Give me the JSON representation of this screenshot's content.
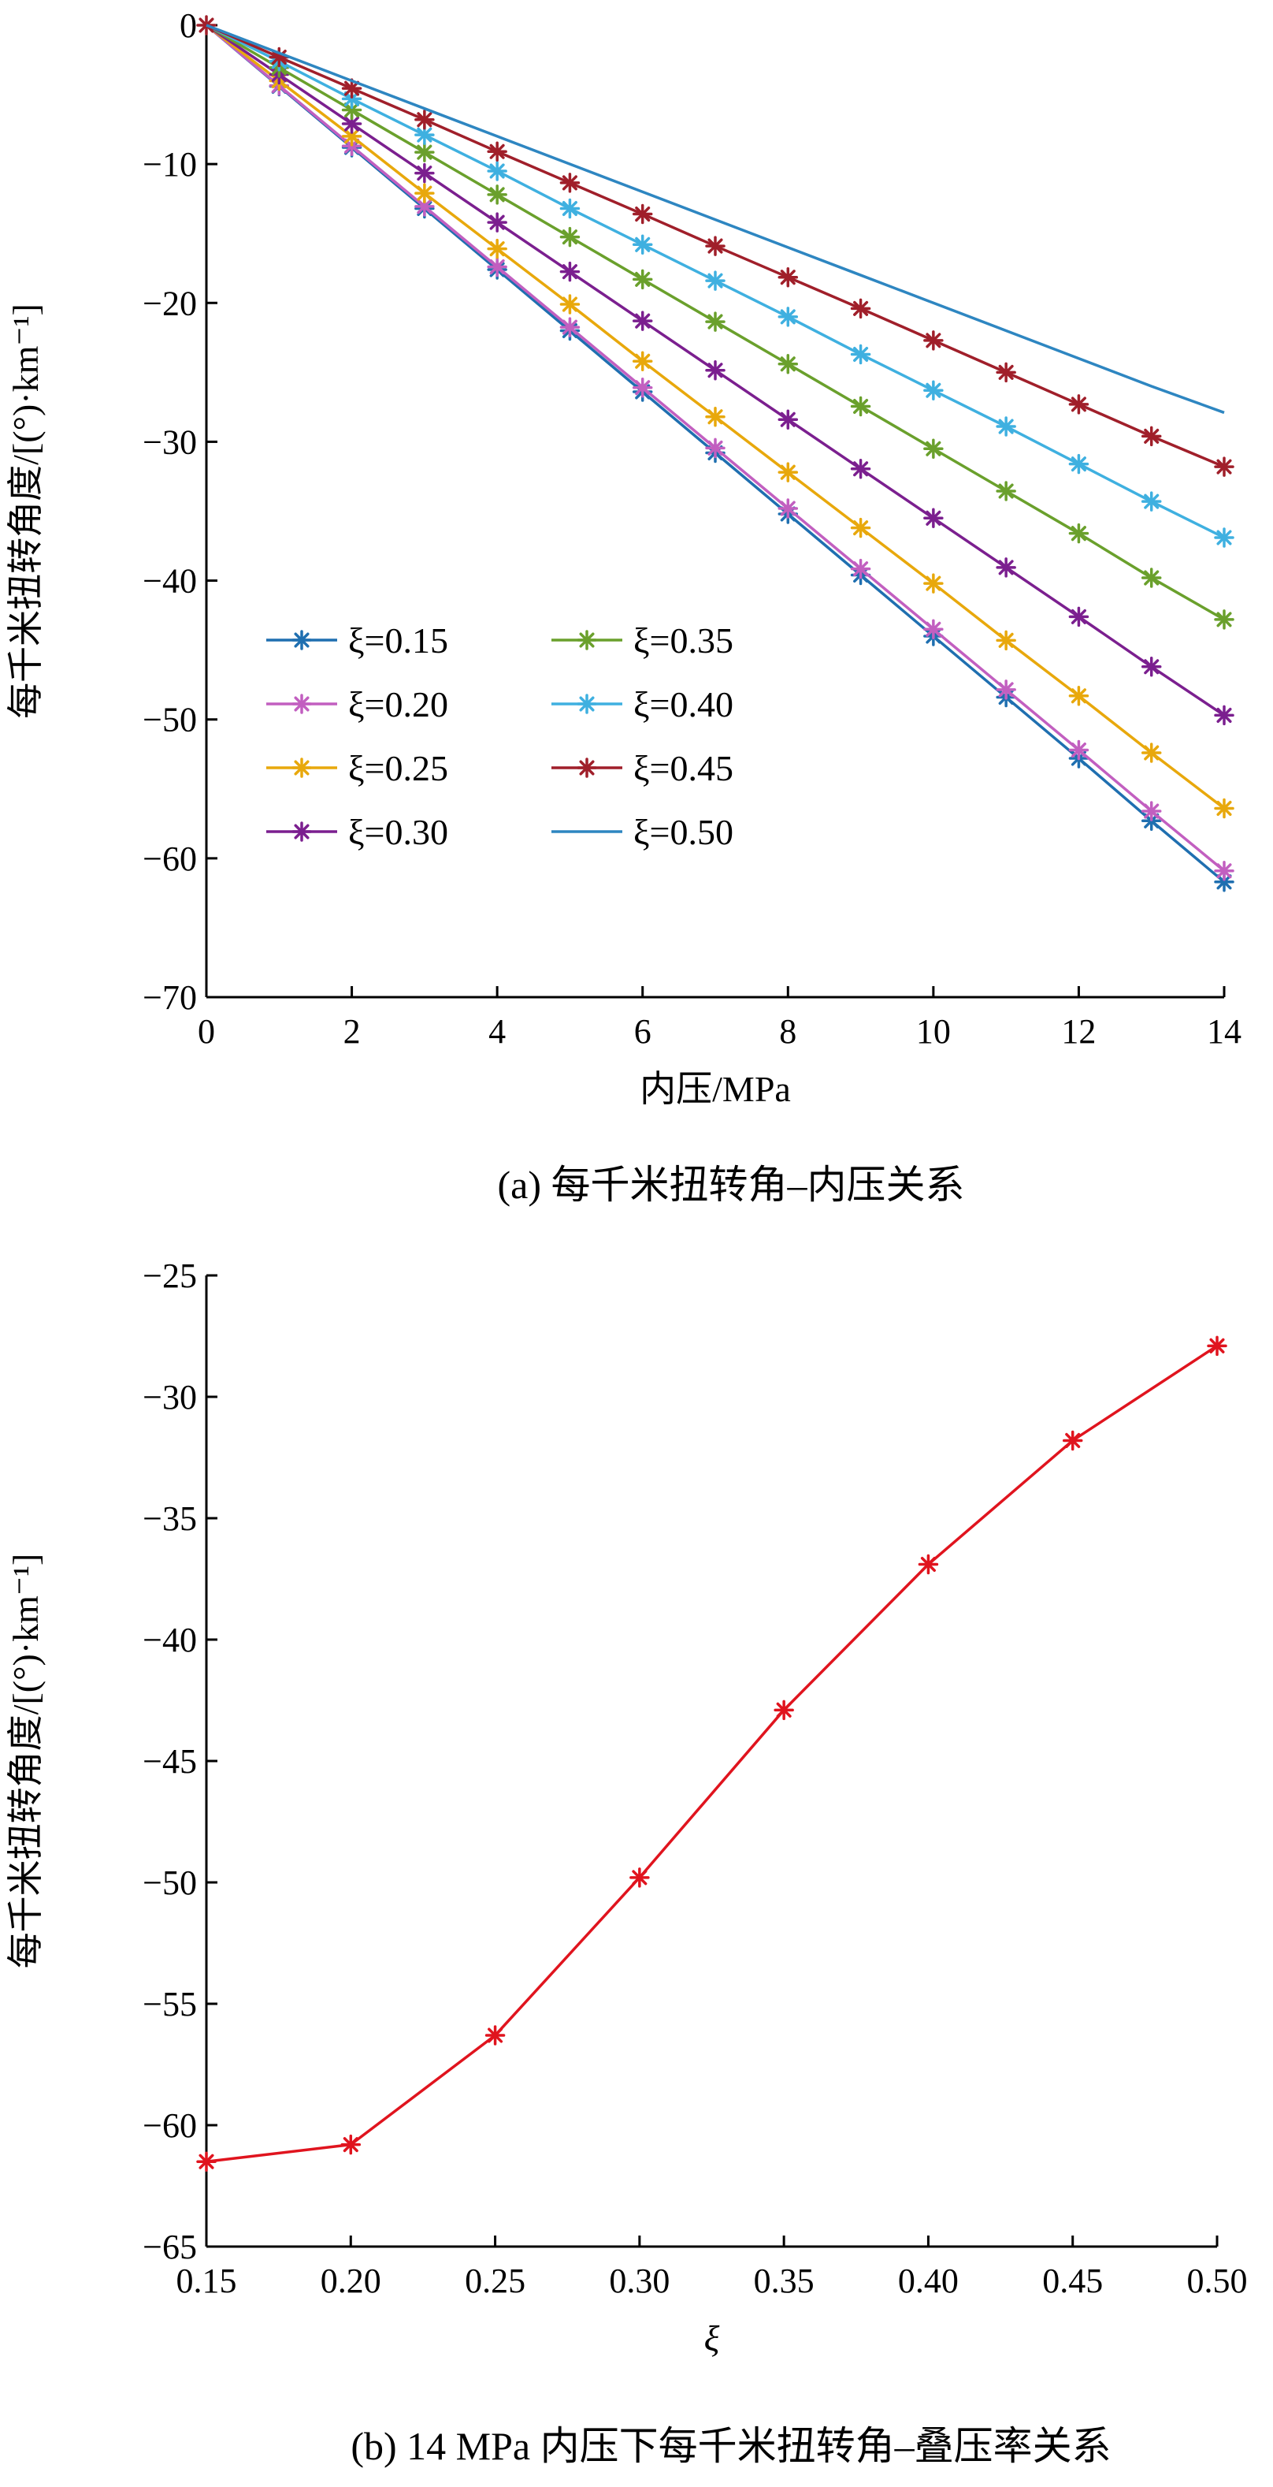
{
  "figure": {
    "caption_a": "(a)  每千米扭转角–内压关系",
    "caption_b": "(b)  14 MPa 内压下每千米扭转角–叠压率关系"
  },
  "chart_data": [
    {
      "type": "line",
      "title": "",
      "xlabel": "内压/MPa",
      "ylabel": "每千米扭转角度/[(°)·km⁻¹]",
      "xlim": [
        0,
        14
      ],
      "ylim": [
        -70,
        0
      ],
      "xticks": [
        "0",
        "2",
        "4",
        "6",
        "8",
        "10",
        "12",
        "14"
      ],
      "yticks": [
        "0",
        "−10",
        "−20",
        "−30",
        "−40",
        "−50",
        "−60",
        "−70"
      ],
      "grid": false,
      "legend": "bottom-left, two columns",
      "x": [
        0,
        1,
        2,
        3,
        4,
        5,
        6,
        7,
        8,
        9,
        10,
        11,
        12,
        13,
        14
      ],
      "series": [
        {
          "name": "ξ=0.15",
          "color": "#1f6fb0",
          "marker": "asterisk",
          "values": [
            0,
            -4.4,
            -8.8,
            -13.2,
            -17.6,
            -22.0,
            -26.4,
            -30.8,
            -35.2,
            -39.6,
            -44.0,
            -48.4,
            -52.8,
            -57.3,
            -61.7
          ]
        },
        {
          "name": "ξ=0.20",
          "color": "#c25fc0",
          "marker": "asterisk",
          "values": [
            0,
            -4.35,
            -8.7,
            -13.05,
            -17.4,
            -21.75,
            -26.1,
            -30.45,
            -34.8,
            -39.15,
            -43.5,
            -47.85,
            -52.2,
            -56.6,
            -60.9
          ]
        },
        {
          "name": "ξ=0.25",
          "color": "#e8a80c",
          "marker": "asterisk",
          "values": [
            0,
            -4.0,
            -8.0,
            -12.1,
            -16.1,
            -20.1,
            -24.2,
            -28.2,
            -32.2,
            -36.2,
            -40.2,
            -44.3,
            -48.3,
            -52.4,
            -56.4
          ]
        },
        {
          "name": "ξ=0.30",
          "color": "#7b1f8f",
          "marker": "asterisk",
          "values": [
            0,
            -3.55,
            -7.1,
            -10.65,
            -14.2,
            -17.75,
            -21.3,
            -24.85,
            -28.4,
            -31.95,
            -35.5,
            -39.05,
            -42.6,
            -46.2,
            -49.7
          ]
        },
        {
          "name": "ξ=0.35",
          "color": "#6aa02c",
          "marker": "asterisk",
          "values": [
            0,
            -3.05,
            -6.1,
            -9.15,
            -12.2,
            -15.25,
            -18.3,
            -21.35,
            -24.4,
            -27.45,
            -30.5,
            -33.55,
            -36.6,
            -39.8,
            -42.8
          ]
        },
        {
          "name": "ξ=0.40",
          "color": "#3fb0e0",
          "marker": "asterisk",
          "values": [
            0,
            -2.6,
            -5.3,
            -7.9,
            -10.5,
            -13.2,
            -15.8,
            -18.4,
            -21.0,
            -23.7,
            -26.3,
            -28.9,
            -31.6,
            -34.3,
            -36.9
          ]
        },
        {
          "name": "ξ=0.45",
          "color": "#a01f2a",
          "marker": "asterisk",
          "values": [
            0,
            -2.3,
            -4.55,
            -6.8,
            -9.1,
            -11.35,
            -13.6,
            -15.9,
            -18.15,
            -20.4,
            -22.7,
            -25.0,
            -27.3,
            -29.6,
            -31.8
          ]
        },
        {
          "name": "ξ=0.50",
          "color": "#2e86c1",
          "marker": "none",
          "values": [
            0,
            -2.0,
            -4.0,
            -6.0,
            -8.0,
            -10.0,
            -12.0,
            -14.0,
            -16.0,
            -18.0,
            -20.0,
            -22.0,
            -24.0,
            -26.0,
            -27.9
          ]
        }
      ]
    },
    {
      "type": "line",
      "title": "",
      "xlabel": "ξ",
      "ylabel": "每千米扭转角度/[(°)·km⁻¹]",
      "xlim": [
        0.15,
        0.5
      ],
      "ylim": [
        -65,
        -25
      ],
      "xticks": [
        "0.15",
        "0.20",
        "0.25",
        "0.30",
        "0.35",
        "0.40",
        "0.45",
        "0.50"
      ],
      "yticks": [
        "−25",
        "−30",
        "−35",
        "−40",
        "−45",
        "−50",
        "−55",
        "−60",
        "−65"
      ],
      "grid": false,
      "x": [
        0.15,
        0.2,
        0.25,
        0.3,
        0.35,
        0.4,
        0.45,
        0.5
      ],
      "series": [
        {
          "name": "",
          "color": "#e0141e",
          "marker": "asterisk",
          "values": [
            -61.5,
            -60.8,
            -56.3,
            -49.8,
            -42.9,
            -36.9,
            -31.8,
            -27.9
          ]
        }
      ]
    }
  ]
}
